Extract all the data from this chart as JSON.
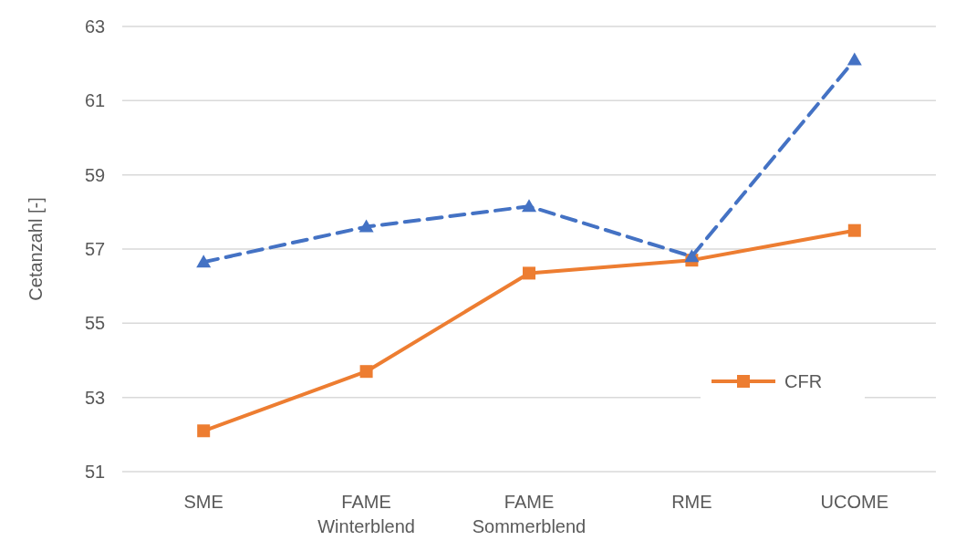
{
  "chart_data": {
    "type": "line",
    "ylabel": "Cetanzahl [-]",
    "categories": [
      "SME",
      "FAME Winterblend",
      "FAME Sommerblend",
      "RME",
      "UCOME"
    ],
    "series": [
      {
        "name": "CFR",
        "color": "#ed7d31",
        "values": [
          52.1,
          53.7,
          56.35,
          56.7,
          57.5
        ],
        "marker": "square",
        "line_style": "solid"
      },
      {
        "color": "#4472c4",
        "values": [
          56.65,
          57.6,
          58.15,
          56.8,
          62.1
        ],
        "marker": "triangle",
        "line_style": "dashed"
      }
    ],
    "ylim": [
      51,
      63
    ],
    "yticks": [
      51,
      53,
      55,
      57,
      59,
      61,
      63
    ],
    "grid": "y",
    "legend": "bottom right"
  }
}
